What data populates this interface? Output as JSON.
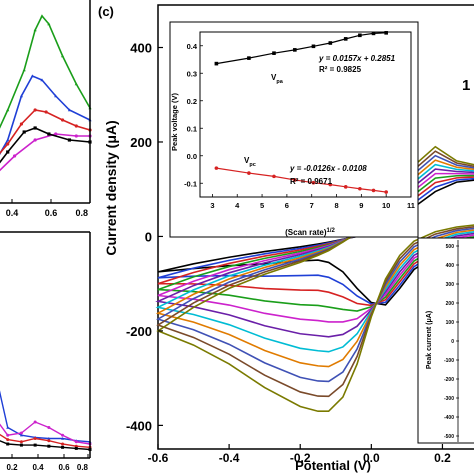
{
  "chart_data": [
    {
      "panel": "top-left-partial",
      "type": "line",
      "xlim": [
        0.1,
        0.8
      ],
      "x_ticks": [
        "0.4",
        "0.6",
        "0.8"
      ],
      "series": [
        {
          "color": "#1a9e1a",
          "marker": "triangle",
          "x": [
            0.1,
            0.2,
            0.32,
            0.4,
            0.45,
            0.5,
            0.6,
            0.7,
            0.8
          ],
          "y": [
            0.3,
            0.45,
            0.65,
            0.85,
            0.92,
            0.88,
            0.72,
            0.58,
            0.46
          ]
        },
        {
          "color": "#1f3fd6",
          "marker": "triangle",
          "x": [
            0.1,
            0.2,
            0.3,
            0.38,
            0.45,
            0.55,
            0.65,
            0.8
          ],
          "y": [
            0.18,
            0.3,
            0.52,
            0.62,
            0.6,
            0.52,
            0.45,
            0.4
          ]
        },
        {
          "color": "#d62222",
          "marker": "circle",
          "x": [
            0.1,
            0.2,
            0.3,
            0.4,
            0.48,
            0.6,
            0.7,
            0.8
          ],
          "y": [
            0.2,
            0.28,
            0.38,
            0.45,
            0.44,
            0.4,
            0.37,
            0.35
          ]
        },
        {
          "color": "#cc22cc",
          "marker": "circle",
          "x": [
            0.1,
            0.25,
            0.4,
            0.55,
            0.7,
            0.8
          ],
          "y": [
            0.12,
            0.22,
            0.3,
            0.33,
            0.32,
            0.32
          ]
        },
        {
          "color": "#000000",
          "marker": "square",
          "x": [
            0.1,
            0.2,
            0.32,
            0.4,
            0.5,
            0.65,
            0.8
          ],
          "y": [
            0.15,
            0.24,
            0.34,
            0.36,
            0.33,
            0.3,
            0.29
          ]
        }
      ]
    },
    {
      "panel": "bottom-left-partial",
      "type": "line",
      "xlim": [
        0.1,
        0.8
      ],
      "x_ticks": [
        "0.2",
        "0.4",
        "0.6",
        "0.8"
      ],
      "series": [
        {
          "color": "#1f3fd6",
          "marker": "triangle",
          "x": [
            0.1,
            0.2,
            0.3,
            0.4,
            0.5,
            0.6,
            0.7,
            0.8
          ],
          "y": [
            0.8,
            0.25,
            0.18,
            0.16,
            0.15,
            0.15,
            0.13,
            0.12
          ]
        },
        {
          "color": "#cc22cc",
          "marker": "circle",
          "x": [
            0.1,
            0.2,
            0.3,
            0.4,
            0.5,
            0.6,
            0.7,
            0.8
          ],
          "y": [
            0.35,
            0.18,
            0.2,
            0.3,
            0.25,
            0.18,
            0.12,
            0.1
          ]
        },
        {
          "color": "#d62222",
          "marker": "circle",
          "x": [
            0.1,
            0.2,
            0.3,
            0.4,
            0.5,
            0.6,
            0.7,
            0.8
          ],
          "y": [
            0.22,
            0.14,
            0.12,
            0.15,
            0.13,
            0.1,
            0.08,
            0.07
          ]
        },
        {
          "color": "#000000",
          "marker": "square",
          "x": [
            0.1,
            0.2,
            0.3,
            0.4,
            0.5,
            0.6,
            0.7,
            0.8
          ],
          "y": [
            0.15,
            0.1,
            0.09,
            0.09,
            0.08,
            0.07,
            0.06,
            0.05
          ]
        }
      ]
    },
    {
      "panel": "c",
      "panel_label": "(c)",
      "type": "line",
      "xlabel": "Potential (V)",
      "ylabel": "Current density (μA)",
      "xlim": [
        -0.6,
        0.3
      ],
      "ylim": [
        -450,
        490
      ],
      "x_ticks": [
        -0.6,
        -0.4,
        -0.2,
        0.0,
        0.2
      ],
      "x_tick_labels": [
        "-0.6",
        "-0.4",
        "-0.2",
        "0.0",
        "0.2"
      ],
      "y_ticks": [
        -400,
        -200,
        0,
        200,
        400
      ],
      "y_tick_labels": [
        "-400",
        "-200",
        "0",
        "200",
        "400"
      ],
      "corner_label": "1",
      "scan_colors": [
        "#000000",
        "#1f3fd6",
        "#d62222",
        "#1a9e1a",
        "#cc22cc",
        "#6a1fa8",
        "#00bcd4",
        "#e07b00",
        "#3f51b5",
        "#7a4a2a",
        "#7a7a00"
      ],
      "curve_shape": {
        "potential": [
          -0.6,
          -0.5,
          -0.4,
          -0.3,
          -0.2,
          -0.15,
          -0.12,
          -0.08,
          -0.04,
          0.0,
          0.04,
          0.08,
          0.12,
          0.18,
          0.24,
          0.3
        ],
        "reduction_min_scan": [
          -75,
          -68,
          -62,
          -58,
          -52,
          -50,
          -55,
          -75,
          -110,
          -140,
          -145,
          -110,
          -70,
          -40,
          -18,
          -10
        ],
        "reduction_max_scan": [
          -200,
          -230,
          -270,
          -320,
          -360,
          -370,
          -370,
          -340,
          -270,
          -170,
          -90,
          -40,
          -10,
          10,
          20,
          25
        ],
        "forward_min_scan": [
          -75,
          -58,
          -44,
          -32,
          -22,
          -16,
          -12,
          -6,
          0,
          8,
          22,
          40,
          62,
          95,
          115,
          120
        ],
        "forward_max_scan": [
          -200,
          -150,
          -110,
          -80,
          -55,
          -40,
          -30,
          -12,
          8,
          30,
          60,
          100,
          150,
          190,
          160,
          150
        ]
      },
      "inset_top": {
        "type": "line",
        "xlabel": "(Scan rate)^1/2",
        "ylabel": "Peak voltage (V)",
        "xlim": [
          2.5,
          11
        ],
        "ylim": [
          -0.15,
          0.45
        ],
        "x_ticks": [
          3,
          4,
          5,
          6,
          7,
          8,
          9,
          10,
          11
        ],
        "x_tick_labels": [
          "3",
          "4",
          "5",
          "6",
          "7",
          "8",
          "9",
          "10",
          "11"
        ],
        "y_ticks": [
          -0.1,
          0.0,
          0.1,
          0.2,
          0.3,
          0.4
        ],
        "y_tick_labels": [
          "-0.1",
          "0.0",
          "0.1",
          "0.2",
          "0.3",
          "0.4"
        ],
        "series": [
          {
            "name": "Vpa",
            "color": "#000000",
            "marker": "square",
            "x": [
              3.16,
              4.47,
              5.48,
              6.32,
              7.07,
              7.75,
              8.37,
              8.94,
              9.49,
              10.0
            ],
            "y": [
              0.335,
              0.355,
              0.373,
              0.385,
              0.398,
              0.41,
              0.425,
              0.438,
              0.445,
              0.447
            ]
          },
          {
            "name": "Vpc",
            "color": "#d62222",
            "marker": "circle",
            "x": [
              3.16,
              4.47,
              5.48,
              6.32,
              7.07,
              7.75,
              8.37,
              8.94,
              9.49,
              10.0
            ],
            "y": [
              -0.045,
              -0.063,
              -0.075,
              -0.088,
              -0.098,
              -0.105,
              -0.113,
              -0.12,
              -0.126,
              -0.132
            ]
          }
        ],
        "labels": {
          "upper_series": "Vpa",
          "lower_series": "Vpc"
        },
        "fits": [
          {
            "equation": "y = 0.0157x + 0.2851",
            "r2": "R² = 0.9825"
          },
          {
            "equation": "y = -0.0126x - 0.0108",
            "r2": "R² = 0.9671"
          }
        ]
      },
      "inset_right": {
        "ylabel": "Peak current (μA)",
        "y_tick_labels": [
          "500",
          "400",
          "300",
          "200",
          "100",
          "0",
          "-100",
          "-200",
          "-300",
          "-400",
          "-500"
        ]
      }
    }
  ]
}
